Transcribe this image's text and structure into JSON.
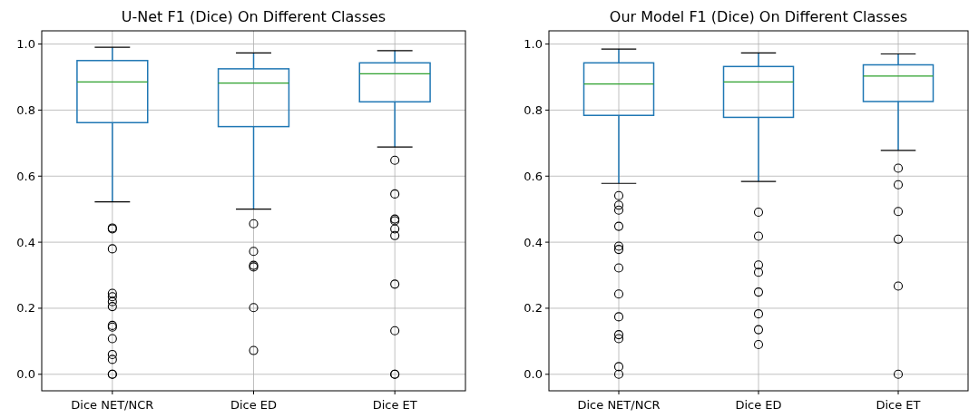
{
  "chart_data": [
    {
      "type": "box",
      "title": "U-Net F1 (Dice) On Different Classes",
      "categories": [
        "Dice NET/NCR",
        "Dice ED",
        "Dice ET"
      ],
      "ylim": [
        -0.05,
        1.04
      ],
      "yticks": [
        {
          "value": 0,
          "label": "0.0"
        },
        {
          "value": 0.2,
          "label": "0.2"
        },
        {
          "value": 0.4,
          "label": "0.4"
        },
        {
          "value": 0.6,
          "label": "0.6"
        },
        {
          "value": 0.8,
          "label": "0.8"
        },
        {
          "value": 1,
          "label": "1.0"
        }
      ],
      "grid": true,
      "color": "#1f77b4",
      "boxes": [
        {
          "low": 0.522,
          "q1": 0.762,
          "median": 0.885,
          "q3": 0.95,
          "high": 0.99,
          "outliers": [
            0.443,
            0.44,
            0.38,
            0.245,
            0.235,
            0.22,
            0.205,
            0.148,
            0.143,
            0.108,
            0.06,
            0.045,
            0,
            0
          ]
        },
        {
          "low": 0.5,
          "q1": 0.75,
          "median": 0.882,
          "q3": 0.925,
          "high": 0.973,
          "outliers": [
            0.456,
            0.372,
            0.33,
            0.325,
            0.202,
            0.072
          ]
        },
        {
          "low": 0.688,
          "q1": 0.825,
          "median": 0.91,
          "q3": 0.943,
          "high": 0.98,
          "outliers": [
            0.648,
            0.546,
            0.47,
            0.465,
            0.44,
            0.42,
            0.273,
            0.132,
            0,
            0
          ]
        }
      ]
    },
    {
      "type": "box",
      "title": "Our Model F1 (Dice) On Different Classes",
      "categories": [
        "Dice NET/NCR",
        "Dice ED",
        "Dice ET"
      ],
      "ylim": [
        -0.05,
        1.04
      ],
      "yticks": [
        {
          "value": 0,
          "label": "0.0"
        },
        {
          "value": 0.2,
          "label": "0.2"
        },
        {
          "value": 0.4,
          "label": "0.4"
        },
        {
          "value": 0.6,
          "label": "0.6"
        },
        {
          "value": 0.8,
          "label": "0.8"
        },
        {
          "value": 1,
          "label": "1.0"
        }
      ],
      "grid": true,
      "color": "#1f77b4",
      "boxes": [
        {
          "low": 0.578,
          "q1": 0.784,
          "median": 0.879,
          "q3": 0.943,
          "high": 0.985,
          "outliers": [
            0.541,
            0.512,
            0.497,
            0.448,
            0.388,
            0.378,
            0.322,
            0.243,
            0.174,
            0.12,
            0.108,
            0.023,
            0
          ]
        },
        {
          "low": 0.584,
          "q1": 0.778,
          "median": 0.885,
          "q3": 0.932,
          "high": 0.973,
          "outliers": [
            0.491,
            0.418,
            0.331,
            0.309,
            0.249,
            0.183,
            0.135,
            0.09
          ]
        },
        {
          "low": 0.678,
          "q1": 0.826,
          "median": 0.903,
          "q3": 0.937,
          "high": 0.97,
          "outliers": [
            0.624,
            0.574,
            0.493,
            0.409,
            0.267,
            0
          ]
        }
      ]
    }
  ]
}
